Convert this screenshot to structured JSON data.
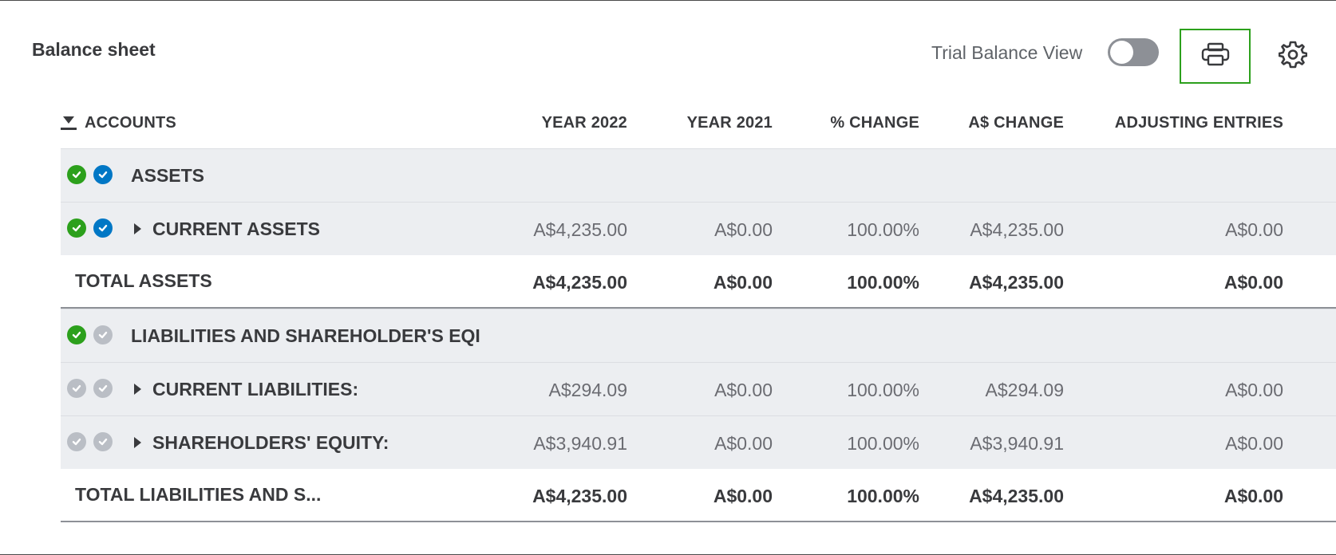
{
  "header": {
    "title": "Balance sheet",
    "trial_balance_label": "Trial Balance View",
    "trial_balance_on": false
  },
  "icons": {
    "print": "printer-icon",
    "settings": "gear-icon",
    "sort": "sort-down-icon",
    "expand": "caret-right-icon",
    "check": "check-circle-icon"
  },
  "colors": {
    "accent_green": "#2ca01c",
    "check_green": "#2ca01c",
    "check_blue": "#0077c5",
    "check_grey": "#babec5",
    "row_shade": "#eceef1"
  },
  "table": {
    "columns": [
      "ACCOUNTS",
      "YEAR 2022",
      "YEAR 2021",
      "% CHANGE",
      "A$ CHANGE",
      "ADJUSTING ENTRIES"
    ],
    "rows": [
      {
        "name": "ASSETS",
        "values": [
          "",
          "",
          "",
          "",
          ""
        ],
        "checks": [
          "green",
          "blue"
        ],
        "expandable": false,
        "kind": "group"
      },
      {
        "name": "CURRENT ASSETS",
        "values": [
          "A$4,235.00",
          "A$0.00",
          "100.00%",
          "A$4,235.00",
          "A$0.00"
        ],
        "checks": [
          "green",
          "blue"
        ],
        "expandable": true,
        "kind": "group"
      },
      {
        "name": "TOTAL ASSETS",
        "values": [
          "A$4,235.00",
          "A$0.00",
          "100.00%",
          "A$4,235.00",
          "A$0.00"
        ],
        "checks": [],
        "expandable": false,
        "kind": "total"
      },
      {
        "name": "LIABILITIES AND SHAREHOLDER'S EQI",
        "values": [
          "",
          "",
          "",
          "",
          ""
        ],
        "checks": [
          "green",
          "grey"
        ],
        "expandable": false,
        "kind": "group"
      },
      {
        "name": "CURRENT LIABILITIES:",
        "values": [
          "A$294.09",
          "A$0.00",
          "100.00%",
          "A$294.09",
          "A$0.00"
        ],
        "checks": [
          "grey",
          "grey"
        ],
        "expandable": true,
        "kind": "group"
      },
      {
        "name": "SHAREHOLDERS' EQUITY:",
        "values": [
          "A$3,940.91",
          "A$0.00",
          "100.00%",
          "A$3,940.91",
          "A$0.00"
        ],
        "checks": [
          "grey",
          "grey"
        ],
        "expandable": true,
        "kind": "group"
      },
      {
        "name": "TOTAL LIABILITIES AND S...",
        "values": [
          "A$4,235.00",
          "A$0.00",
          "100.00%",
          "A$4,235.00",
          "A$0.00"
        ],
        "checks": [],
        "expandable": false,
        "kind": "total"
      }
    ]
  }
}
